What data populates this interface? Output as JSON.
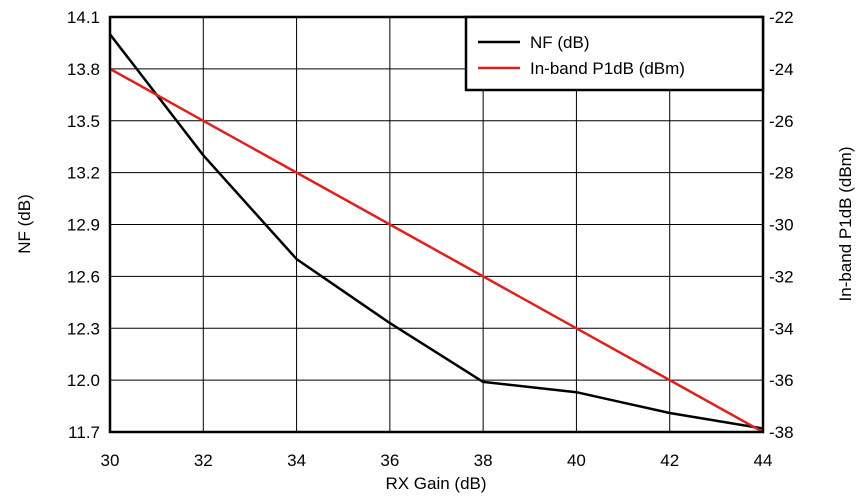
{
  "chart_data": {
    "type": "line",
    "xlabel": "RX Gain (dB)",
    "ylabel": "NF (dB)",
    "y2label": "In-band P1dB (dBm)",
    "xlim": [
      30,
      44
    ],
    "ylim": [
      11.7,
      14.1
    ],
    "y2lim": [
      -38,
      -22
    ],
    "grid": true,
    "legend": "top-right",
    "x_ticks": [
      "30",
      "32",
      "34",
      "36",
      "38",
      "40",
      "42",
      "44"
    ],
    "y_ticks": [
      "11.7",
      "12.0",
      "12.3",
      "12.6",
      "12.9",
      "13.2",
      "13.5",
      "13.8",
      "14.1"
    ],
    "y2_ticks": [
      "-38",
      "-36",
      "-34",
      "-32",
      "-30",
      "-28",
      "-26",
      "-24",
      "-22"
    ],
    "series": [
      {
        "name": "NF (dB)",
        "axis": "left",
        "color": "#000000",
        "x": [
          30,
          32,
          34,
          36,
          38,
          40,
          42,
          44
        ],
        "y": [
          14.0,
          13.3,
          12.7,
          12.33,
          11.99,
          11.93,
          11.81,
          11.72
        ]
      },
      {
        "name": "In-band P1dB (dBm)",
        "axis": "right",
        "color": "#e01f1f",
        "x": [
          30,
          32,
          34,
          36,
          38,
          40,
          42,
          44
        ],
        "y": [
          -24,
          -26,
          -28,
          -30,
          -32,
          -34,
          -36,
          -38
        ]
      }
    ]
  }
}
